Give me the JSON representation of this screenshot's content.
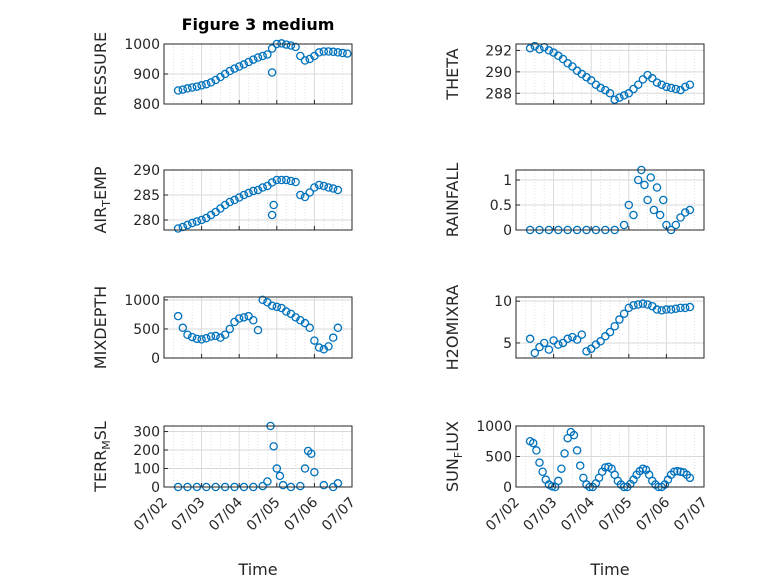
{
  "figure": {
    "title": "Figure 3 medium",
    "marker_color": "#0072bd",
    "grid_color": "#d9d9d9"
  },
  "chart_data": [
    {
      "type": "scatter",
      "ylabel": "PRESSURE",
      "ylim": [
        800,
        1000
      ],
      "yticks": [
        "800",
        "900",
        "1000"
      ],
      "ytick_values": [
        800,
        900,
        1000
      ],
      "xlim": [
        "07/02",
        "07/07"
      ],
      "xticks": [],
      "grid": true,
      "x": [
        "07/02 09:00",
        "07/02 12:00",
        "07/02 15:00",
        "07/02 18:00",
        "07/02 21:00",
        "07/03 00:00",
        "07/03 03:00",
        "07/03 06:00",
        "07/03 09:00",
        "07/03 12:00",
        "07/03 15:00",
        "07/03 18:00",
        "07/03 21:00",
        "07/04 00:00",
        "07/04 03:00",
        "07/04 06:00",
        "07/04 09:00",
        "07/04 12:00",
        "07/04 15:00",
        "07/04 18:00",
        "07/04 21:00",
        "07/05 00:00",
        "07/05 03:00",
        "07/05 06:00",
        "07/05 09:00",
        "07/05 12:00",
        "07/05 15:00",
        "07/05 18:00",
        "07/05 21:00",
        "07/06 00:00",
        "07/06 03:00",
        "07/06 06:00",
        "07/06 09:00",
        "07/06 12:00",
        "07/06 15:00",
        "07/06 18:00",
        "07/06 21:00",
        "07/04 21:00"
      ],
      "y": [
        845,
        848,
        852,
        855,
        858,
        862,
        866,
        872,
        880,
        890,
        900,
        910,
        918,
        925,
        932,
        940,
        948,
        955,
        960,
        965,
        985,
        1000,
        1002,
        998,
        995,
        990,
        960,
        945,
        950,
        960,
        972,
        975,
        975,
        974,
        972,
        970,
        968,
        905
      ]
    },
    {
      "type": "scatter",
      "ylabel": "THETA",
      "ylim": [
        287,
        292.6
      ],
      "yticks": [
        "288",
        "290",
        "292"
      ],
      "ytick_values": [
        288,
        290,
        292
      ],
      "xlim": [
        "07/02",
        "07/07"
      ],
      "xticks": [],
      "grid": true,
      "x": [
        "07/02 09:00",
        "07/02 12:00",
        "07/02 15:00",
        "07/02 18:00",
        "07/02 21:00",
        "07/03 00:00",
        "07/03 03:00",
        "07/03 06:00",
        "07/03 09:00",
        "07/03 12:00",
        "07/03 15:00",
        "07/03 18:00",
        "07/03 21:00",
        "07/04 00:00",
        "07/04 03:00",
        "07/04 06:00",
        "07/04 09:00",
        "07/04 12:00",
        "07/04 15:00",
        "07/04 18:00",
        "07/04 21:00",
        "07/05 00:00",
        "07/05 03:00",
        "07/05 06:00",
        "07/05 09:00",
        "07/05 12:00",
        "07/05 15:00",
        "07/05 18:00",
        "07/05 21:00",
        "07/06 00:00",
        "07/06 03:00",
        "07/06 06:00",
        "07/06 09:00",
        "07/06 12:00",
        "07/06 15:00"
      ],
      "y": [
        292.2,
        292.4,
        292.1,
        292.3,
        292.0,
        291.8,
        291.5,
        291.2,
        290.8,
        290.5,
        290.1,
        289.8,
        289.5,
        289.2,
        288.8,
        288.5,
        288.3,
        288.0,
        287.4,
        287.6,
        287.8,
        288.0,
        288.4,
        288.8,
        289.3,
        289.7,
        289.4,
        289.0,
        288.8,
        288.6,
        288.5,
        288.4,
        288.3,
        288.6,
        288.8
      ]
    },
    {
      "type": "scatter",
      "ylabel": "AIR_TEMP",
      "ylim": [
        278,
        290
      ],
      "yticks": [
        "280",
        "285",
        "290"
      ],
      "ytick_values": [
        280,
        285,
        290
      ],
      "xlim": [
        "07/02",
        "07/07"
      ],
      "xticks": [],
      "grid": true,
      "x": [
        "07/02 09:00",
        "07/02 12:00",
        "07/02 15:00",
        "07/02 18:00",
        "07/02 21:00",
        "07/03 00:00",
        "07/03 03:00",
        "07/03 06:00",
        "07/03 09:00",
        "07/03 12:00",
        "07/03 15:00",
        "07/03 18:00",
        "07/03 21:00",
        "07/04 00:00",
        "07/04 03:00",
        "07/04 06:00",
        "07/04 09:00",
        "07/04 12:00",
        "07/04 15:00",
        "07/04 18:00",
        "07/04 21:00",
        "07/05 00:00",
        "07/05 03:00",
        "07/05 06:00",
        "07/05 09:00",
        "07/05 12:00",
        "07/05 15:00",
        "07/05 18:00",
        "07/05 21:00",
        "07/06 00:00",
        "07/06 03:00",
        "07/06 06:00",
        "07/06 09:00",
        "07/06 12:00",
        "07/06 15:00",
        "07/04 21:00",
        "07/04 22:00"
      ],
      "y": [
        278.3,
        278.6,
        279.0,
        279.4,
        279.7,
        280.0,
        280.4,
        281.0,
        281.6,
        282.3,
        283.0,
        283.6,
        284.0,
        284.5,
        285.0,
        285.4,
        285.8,
        286.0,
        286.5,
        286.8,
        287.5,
        288.0,
        288.0,
        288.0,
        287.8,
        287.6,
        285.0,
        284.6,
        285.5,
        286.5,
        287.0,
        286.8,
        286.5,
        286.3,
        286.0,
        281.0,
        283.0
      ]
    },
    {
      "type": "scatter",
      "ylabel": "RAINFALL",
      "ylim": [
        0,
        1.2
      ],
      "yticks": [
        "0",
        "0.5",
        "1"
      ],
      "ytick_values": [
        0,
        0.5,
        1
      ],
      "xlim": [
        "07/02",
        "07/07"
      ],
      "xticks": [],
      "grid": true,
      "x": [
        "07/02 09:00",
        "07/02 15:00",
        "07/02 21:00",
        "07/03 03:00",
        "07/03 09:00",
        "07/03 15:00",
        "07/03 21:00",
        "07/04 03:00",
        "07/04 09:00",
        "07/04 15:00",
        "07/04 21:00",
        "07/05 00:00",
        "07/05 03:00",
        "07/05 06:00",
        "07/05 08:00",
        "07/05 10:00",
        "07/05 12:00",
        "07/05 14:00",
        "07/05 16:00",
        "07/05 18:00",
        "07/05 20:00",
        "07/05 22:00",
        "07/06 00:00",
        "07/06 03:00",
        "07/06 06:00",
        "07/06 09:00",
        "07/06 12:00",
        "07/06 15:00"
      ],
      "y": [
        0,
        0,
        0,
        0,
        0,
        0,
        0,
        0,
        0,
        0,
        0.1,
        0.5,
        0.3,
        1.0,
        1.2,
        0.9,
        0.6,
        1.05,
        0.4,
        0.85,
        0.3,
        0.6,
        0.1,
        0,
        0.1,
        0.25,
        0.35,
        0.4
      ]
    },
    {
      "type": "scatter",
      "ylabel": "MIXDEPTH",
      "ylim": [
        0,
        1050
      ],
      "yticks": [
        "0",
        "500",
        "1000"
      ],
      "ytick_values": [
        0,
        500,
        1000
      ],
      "xlim": [
        "07/02",
        "07/07"
      ],
      "xticks": [],
      "grid": true,
      "x": [
        "07/02 09:00",
        "07/02 12:00",
        "07/02 15:00",
        "07/02 18:00",
        "07/02 21:00",
        "07/03 00:00",
        "07/03 03:00",
        "07/03 06:00",
        "07/03 09:00",
        "07/03 12:00",
        "07/03 15:00",
        "07/03 18:00",
        "07/03 21:00",
        "07/04 00:00",
        "07/04 03:00",
        "07/04 06:00",
        "07/04 09:00",
        "07/04 12:00",
        "07/04 15:00",
        "07/04 18:00",
        "07/04 21:00",
        "07/05 00:00",
        "07/05 03:00",
        "07/05 06:00",
        "07/05 09:00",
        "07/05 12:00",
        "07/05 15:00",
        "07/05 18:00",
        "07/05 21:00",
        "07/06 00:00",
        "07/06 03:00",
        "07/06 06:00",
        "07/06 09:00",
        "07/06 12:00",
        "07/06 15:00"
      ],
      "y": [
        720,
        520,
        400,
        360,
        330,
        320,
        340,
        370,
        380,
        350,
        400,
        500,
        620,
        680,
        700,
        720,
        650,
        480,
        1000,
        960,
        900,
        880,
        860,
        800,
        760,
        700,
        650,
        600,
        520,
        300,
        180,
        150,
        200,
        350,
        520
      ]
    },
    {
      "type": "scatter",
      "ylabel": "H2OMIXRA",
      "ylim": [
        3.2,
        10.5
      ],
      "yticks": [
        "5",
        "10"
      ],
      "ytick_values": [
        5,
        10
      ],
      "xlim": [
        "07/02",
        "07/07"
      ],
      "xticks": [],
      "grid": true,
      "x": [
        "07/02 09:00",
        "07/02 12:00",
        "07/02 15:00",
        "07/02 18:00",
        "07/02 21:00",
        "07/03 00:00",
        "07/03 03:00",
        "07/03 06:00",
        "07/03 09:00",
        "07/03 12:00",
        "07/03 15:00",
        "07/03 18:00",
        "07/03 21:00",
        "07/04 00:00",
        "07/04 03:00",
        "07/04 06:00",
        "07/04 09:00",
        "07/04 12:00",
        "07/04 15:00",
        "07/04 18:00",
        "07/04 21:00",
        "07/05 00:00",
        "07/05 03:00",
        "07/05 06:00",
        "07/05 09:00",
        "07/05 12:00",
        "07/05 15:00",
        "07/05 18:00",
        "07/05 21:00",
        "07/06 00:00",
        "07/06 03:00",
        "07/06 06:00",
        "07/06 09:00",
        "07/06 12:00",
        "07/06 15:00"
      ],
      "y": [
        5.5,
        3.8,
        4.5,
        5.0,
        4.2,
        5.3,
        4.8,
        5.0,
        5.5,
        5.7,
        5.4,
        6.0,
        4.0,
        4.3,
        4.8,
        5.2,
        5.8,
        6.3,
        7.0,
        7.8,
        8.5,
        9.2,
        9.5,
        9.6,
        9.7,
        9.6,
        9.4,
        9.0,
        8.9,
        9.0,
        9.0,
        9.1,
        9.2,
        9.2,
        9.3
      ]
    },
    {
      "type": "scatter",
      "ylabel": "TERR_MSL",
      "ylim": [
        0,
        330
      ],
      "yticks": [
        "0",
        "100",
        "200",
        "300"
      ],
      "ytick_values": [
        0,
        100,
        200,
        300
      ],
      "xlim": [
        "07/02",
        "07/07"
      ],
      "xticks": [
        "07/02",
        "07/03",
        "07/04",
        "07/05",
        "07/06",
        "07/07"
      ],
      "xlabel": "Time",
      "grid": true,
      "x": [
        "07/02 09:00",
        "07/02 15:00",
        "07/02 21:00",
        "07/03 03:00",
        "07/03 09:00",
        "07/03 15:00",
        "07/03 21:00",
        "07/04 03:00",
        "07/04 09:00",
        "07/04 15:00",
        "07/04 18:00",
        "07/04 20:00",
        "07/04 22:00",
        "07/05 00:00",
        "07/05 02:00",
        "07/05 04:00",
        "07/05 09:00",
        "07/05 15:00",
        "07/05 18:00",
        "07/05 20:00",
        "07/05 22:00",
        "07/06 00:00",
        "07/06 06:00",
        "07/06 12:00",
        "07/06 15:00"
      ],
      "y": [
        0,
        0,
        0,
        0,
        0,
        0,
        0,
        0,
        0,
        5,
        30,
        330,
        220,
        100,
        60,
        10,
        0,
        5,
        100,
        195,
        180,
        80,
        10,
        0,
        20
      ]
    },
    {
      "type": "scatter",
      "ylabel": "SUN_FLUX",
      "ylim": [
        0,
        1000
      ],
      "yticks": [
        "0",
        "500",
        "1000"
      ],
      "ytick_values": [
        0,
        500,
        1000
      ],
      "xlim": [
        "07/02",
        "07/07"
      ],
      "xticks": [
        "07/02",
        "07/03",
        "07/04",
        "07/05",
        "07/06",
        "07/07"
      ],
      "xlabel": "Time",
      "grid": true,
      "x": [
        "07/02 09:00",
        "07/02 11:00",
        "07/02 13:00",
        "07/02 15:00",
        "07/02 17:00",
        "07/02 19:00",
        "07/02 21:00",
        "07/02 23:00",
        "07/03 01:00",
        "07/03 03:00",
        "07/03 05:00",
        "07/03 07:00",
        "07/03 09:00",
        "07/03 11:00",
        "07/03 13:00",
        "07/03 15:00",
        "07/03 17:00",
        "07/03 19:00",
        "07/03 21:00",
        "07/03 23:00",
        "07/04 01:00",
        "07/04 03:00",
        "07/04 05:00",
        "07/04 07:00",
        "07/04 09:00",
        "07/04 11:00",
        "07/04 13:00",
        "07/04 15:00",
        "07/04 17:00",
        "07/04 19:00",
        "07/04 21:00",
        "07/04 23:00",
        "07/05 01:00",
        "07/05 03:00",
        "07/05 05:00",
        "07/05 07:00",
        "07/05 09:00",
        "07/05 11:00",
        "07/05 13:00",
        "07/05 15:00",
        "07/05 17:00",
        "07/05 19:00",
        "07/05 21:00",
        "07/05 23:00",
        "07/06 01:00",
        "07/06 03:00",
        "07/06 05:00",
        "07/06 07:00",
        "07/06 09:00",
        "07/06 11:00",
        "07/06 13:00",
        "07/06 15:00"
      ],
      "y": [
        750,
        720,
        600,
        400,
        250,
        120,
        40,
        10,
        0,
        100,
        300,
        550,
        800,
        900,
        850,
        600,
        350,
        150,
        40,
        0,
        0,
        60,
        150,
        250,
        320,
        330,
        300,
        200,
        100,
        40,
        0,
        0,
        50,
        120,
        200,
        260,
        300,
        280,
        200,
        100,
        40,
        0,
        0,
        40,
        120,
        200,
        250,
        260,
        250,
        240,
        200,
        150
      ]
    }
  ]
}
